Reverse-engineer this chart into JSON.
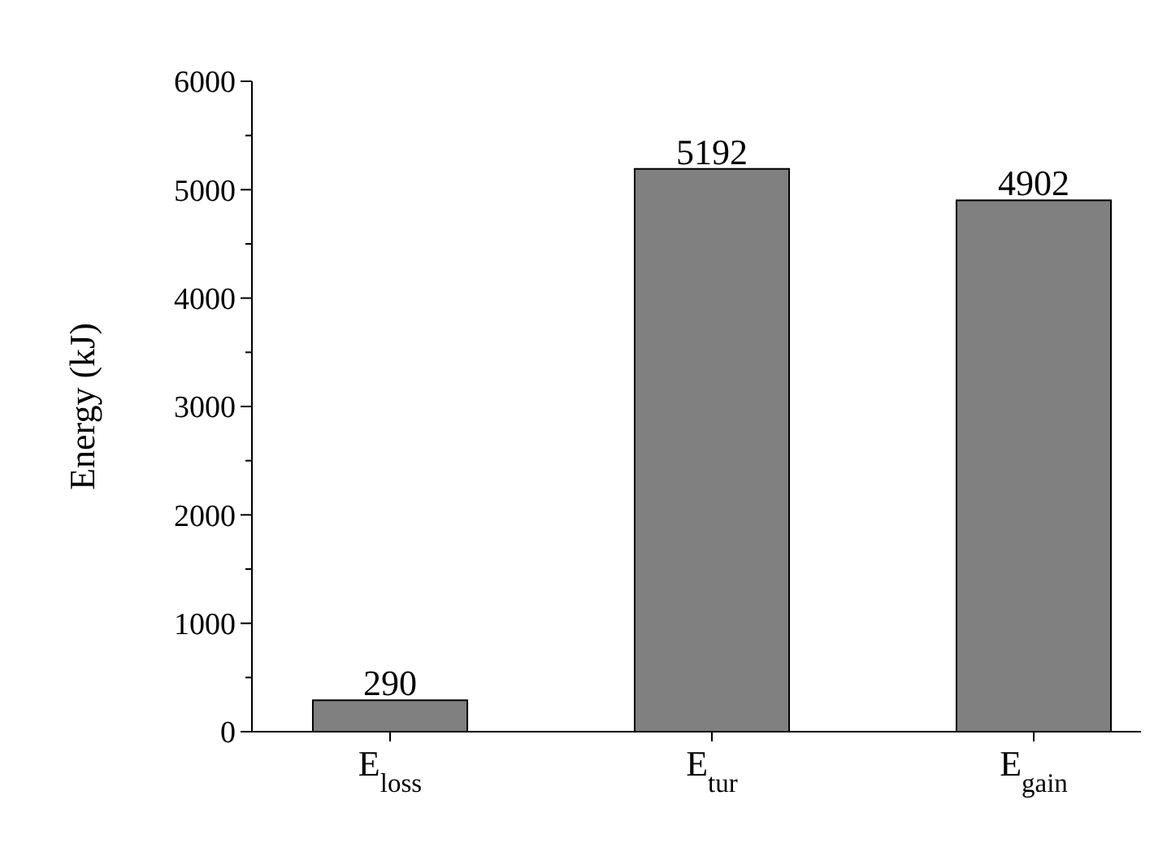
{
  "chart_data": {
    "type": "bar",
    "ylabel": "Energy (kJ)",
    "categories": [
      "E$_{loss}$",
      "E$_{tur}$",
      "E$_{gain}$"
    ],
    "values": [
      290,
      5192,
      4902
    ],
    "color": "#808080",
    "data_labels": true,
    "ylim": [
      0,
      6000
    ],
    "yticks": [
      0,
      {
        "value": 500,
        "label": null
      },
      1000,
      {
        "value": 1500,
        "label": null
      },
      2000,
      {
        "value": 2500,
        "label": null
      },
      3000,
      {
        "value": 3500,
        "label": null
      },
      4000,
      {
        "value": 4500,
        "label": null
      },
      5000,
      {
        "value": 5500,
        "label": null
      },
      6000
    ],
    "grid": false
  }
}
